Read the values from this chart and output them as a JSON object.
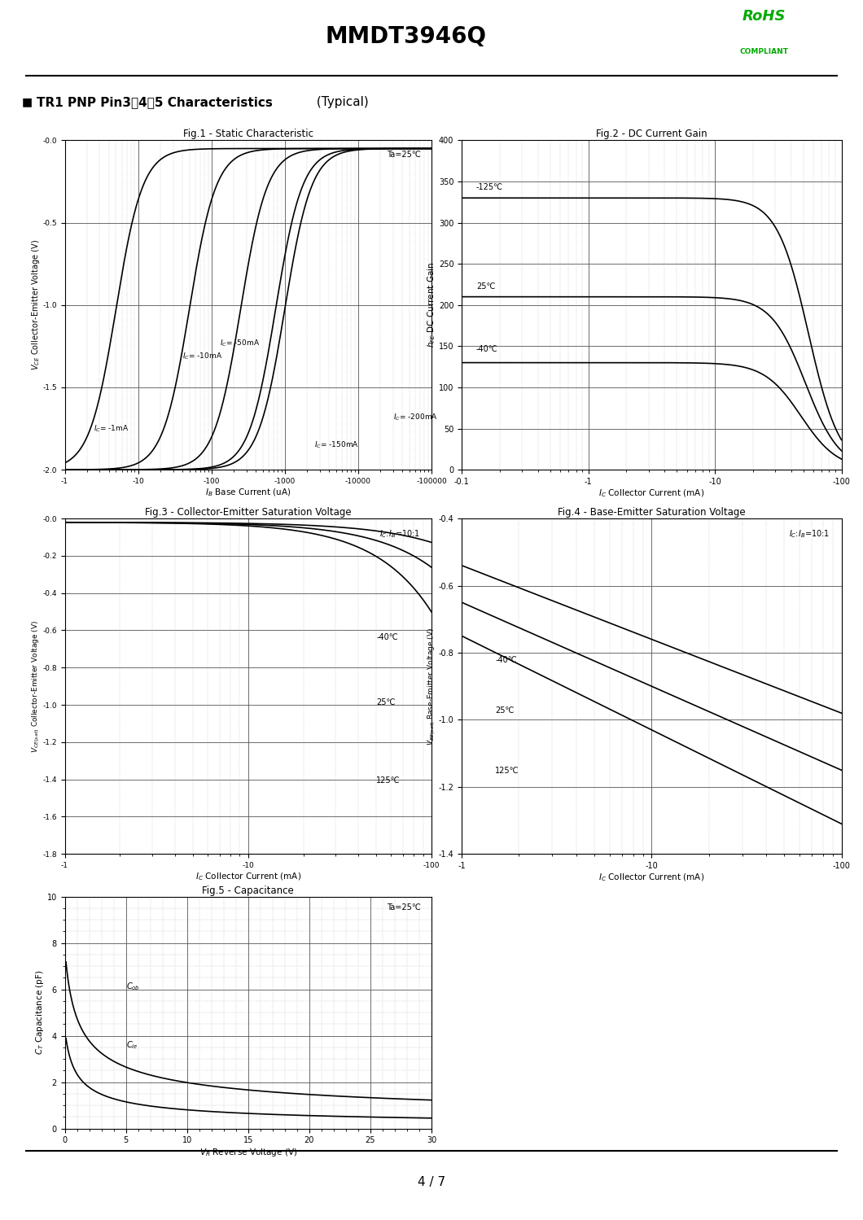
{
  "title": "MMDT3946Q",
  "rohs_text": "RoHS",
  "compliant_text": "COMPLIANT",
  "section_title_bold": "TR1 PNP Pin3、4、5 Characteristics",
  "section_title_normal": " (Typical)",
  "fig1_title": "Fig.1 - Static Characteristic",
  "fig1_xlabel": "I_B Base Current (uA)",
  "fig1_ylabel": "V_CE Collector-Emitter Voltage (V)",
  "fig1_annotation": "Ta=25℃",
  "fig2_title": "Fig.2 - DC Current Gain",
  "fig2_xlabel": "I_C Collector Current (mA)",
  "fig2_ylabel": "h_FE DC Current Gain",
  "fig3_title": "Fig.3 - Collector-Emitter Saturation Voltage",
  "fig3_xlabel": "I_C Collector Current (mA)",
  "fig3_ylabel": "V_CE(sat) Collector-Emitter Voltage (V)",
  "fig3_annotation": "I_C:I_B=10:1",
  "fig4_title": "Fig.4 - Base-Emitter Saturation Voltage",
  "fig4_xlabel": "I_C Collector Current (mA)",
  "fig4_ylabel": "V_BE(sat) Base-Emitter Voltage (V)",
  "fig4_annotation": "I_C:I_B=10:1",
  "fig5_title": "Fig.5 - Capacitance",
  "fig5_xlabel": "V_R Reverse Voltage (V)",
  "fig5_ylabel": "C_T Capacitance (pF)",
  "fig5_annotation": "Ta=25℃",
  "background_color": "#ffffff"
}
